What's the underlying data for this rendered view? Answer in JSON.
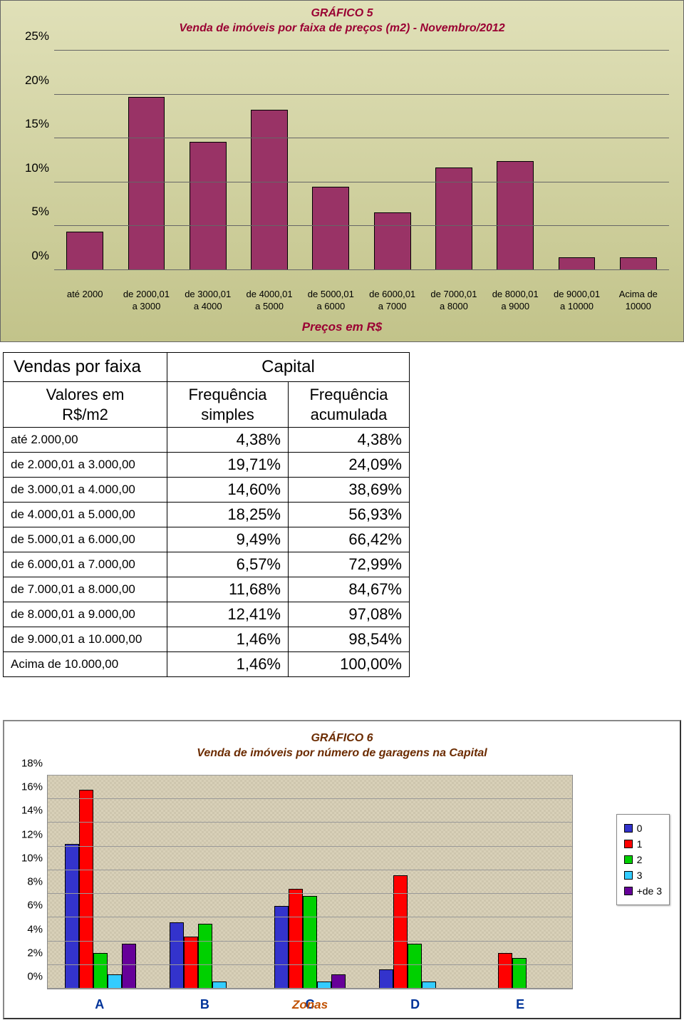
{
  "chart5": {
    "title_line1": "GRÁFICO 5",
    "title_line2": "Venda de imóveis por faixa de preços (m2) - Novembro/2012",
    "title_fontsize": 17,
    "title_color": "#9a0033",
    "x_axis_title": "Preços em R$",
    "background_gradient_top": "#e0e0b8",
    "background_gradient_bottom": "#c2c38a",
    "bar_color": "#993366",
    "grid_color": "#666666",
    "y_ticks": [
      "0%",
      "5%",
      "10%",
      "15%",
      "20%",
      "25%"
    ],
    "y_max_percent": 25,
    "categories": [
      "até 2000",
      "de 2000,01\na 3000",
      "de 3000,01\na 4000",
      "de 4000,01\na 5000",
      "de 5000,01\na 6000",
      "de 6000,01\na 7000",
      "de 7000,01\na 8000",
      "de 8000,01\na 9000",
      "de 9000,01\na 10000",
      "Acima de\n10000"
    ],
    "values_percent": [
      4.38,
      19.71,
      14.6,
      18.25,
      9.49,
      6.57,
      11.68,
      12.41,
      1.46,
      1.46
    ],
    "xlabel_fontsize": 13
  },
  "table": {
    "header_main_left": "Vendas por faixa",
    "header_main_right": "Capital",
    "header_sub_left": "Valores em\nR$/m2",
    "header_sub_mid": "Frequência\nsimples",
    "header_sub_right": "Frequência\nacumulada",
    "rows": [
      {
        "label": "até 2.000,00",
        "fs": "4,38%",
        "fa": "4,38%"
      },
      {
        "label": "de 2.000,01 a 3.000,00",
        "fs": "19,71%",
        "fa": "24,09%"
      },
      {
        "label": "de 3.000,01 a 4.000,00",
        "fs": "14,60%",
        "fa": "38,69%"
      },
      {
        "label": "de 4.000,01 a 5.000,00",
        "fs": "18,25%",
        "fa": "56,93%"
      },
      {
        "label": "de 5.000,01 a 6.000,00",
        "fs": "9,49%",
        "fa": "66,42%"
      },
      {
        "label": "de 6.000,01 a 7.000,00",
        "fs": "6,57%",
        "fa": "72,99%"
      },
      {
        "label": "de 7.000,01 a 8.000,00",
        "fs": "11,68%",
        "fa": "84,67%"
      },
      {
        "label": "de 8.000,01 a 9.000,00",
        "fs": "12,41%",
        "fa": "97,08%"
      },
      {
        "label": "de 9.000,01 a 10.000,00",
        "fs": "1,46%",
        "fa": "98,54%"
      },
      {
        "label": "Acima de 10.000,00",
        "fs": "1,46%",
        "fa": "100,00%"
      }
    ]
  },
  "chart6": {
    "title_line1": "GRÁFICO 6",
    "title_line2": "Venda de imóveis por número de garagens na Capital",
    "title_fontsize": 16,
    "title_color": "#6b2b00",
    "plot_background": "#d4ccb4",
    "x_axis_title": "Zonas",
    "x_axis_title_color": "#c05000",
    "xlabel_color": "#003399",
    "y_ticks": [
      "0%",
      "2%",
      "4%",
      "6%",
      "8%",
      "10%",
      "12%",
      "14%",
      "16%",
      "18%"
    ],
    "y_max_percent": 18,
    "zones": [
      "A",
      "B",
      "C",
      "D",
      "E"
    ],
    "series": [
      {
        "name": "0",
        "color": "#3333cc"
      },
      {
        "name": "1",
        "color": "#ff0000"
      },
      {
        "name": "2",
        "color": "#00d000"
      },
      {
        "name": "3",
        "color": "#33ccff"
      },
      {
        "name": "+de 3",
        "color": "#660099"
      }
    ],
    "grouped_values_percent": [
      [
        12.2,
        16.8,
        3.0,
        1.2,
        3.8
      ],
      [
        5.6,
        4.4,
        5.5,
        0.6,
        0.0
      ],
      [
        7.0,
        8.4,
        7.8,
        0.6,
        1.2
      ],
      [
        1.6,
        9.6,
        3.8,
        0.6,
        0.0
      ],
      [
        0.0,
        3.0,
        2.6,
        0.0,
        0.0
      ]
    ]
  }
}
